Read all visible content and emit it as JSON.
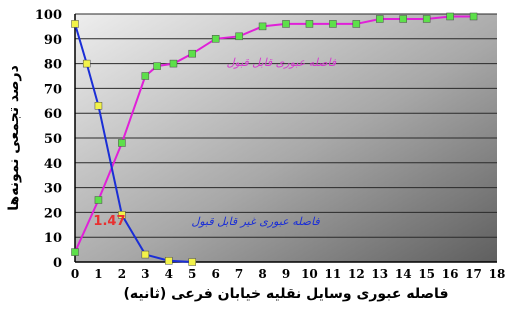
{
  "chart_data": {
    "type": "line",
    "xlabel": "فاصله عبوری وسایل نقلیه خیابان فرعی (ثانیه)",
    "ylabel": "درصد تجمعی نمونه‌ها",
    "xlim": [
      0,
      18
    ],
    "ylim": [
      0,
      100
    ],
    "x_ticks": [
      "0",
      "1",
      "2",
      "3",
      "4",
      "5",
      "6",
      "7",
      "8",
      "9",
      "10",
      "11",
      "12",
      "13",
      "14",
      "15",
      "16",
      "17",
      "18"
    ],
    "y_ticks": [
      "0",
      "10",
      "20",
      "30",
      "40",
      "50",
      "60",
      "70",
      "80",
      "90",
      "100"
    ],
    "grid": "horizontal",
    "series": [
      {
        "name": "فاصله عبوری قابل قبول",
        "color": "#e020d8",
        "marker_color": "#5de04a",
        "x": [
          0,
          1,
          2,
          3,
          3.5,
          4.2,
          5,
          6,
          7,
          8,
          9,
          10,
          11,
          12,
          13,
          14,
          15,
          16,
          17
        ],
        "y": [
          4,
          25,
          48,
          75,
          79,
          80,
          84,
          90,
          91,
          95,
          96,
          96,
          96,
          96,
          98,
          98,
          98,
          99,
          99
        ]
      },
      {
        "name": "فاصله عبوری غیر قابل قبول",
        "color": "#1a2ed6",
        "marker_color": "#f2f24a",
        "x": [
          0,
          0.5,
          1,
          2,
          3,
          4,
          5
        ],
        "y": [
          96,
          80,
          63,
          19,
          3,
          0.5,
          0
        ]
      }
    ],
    "annotations": [
      {
        "text": "1.47",
        "x": 1.47,
        "y": 15,
        "color": "#e83030"
      }
    ]
  }
}
